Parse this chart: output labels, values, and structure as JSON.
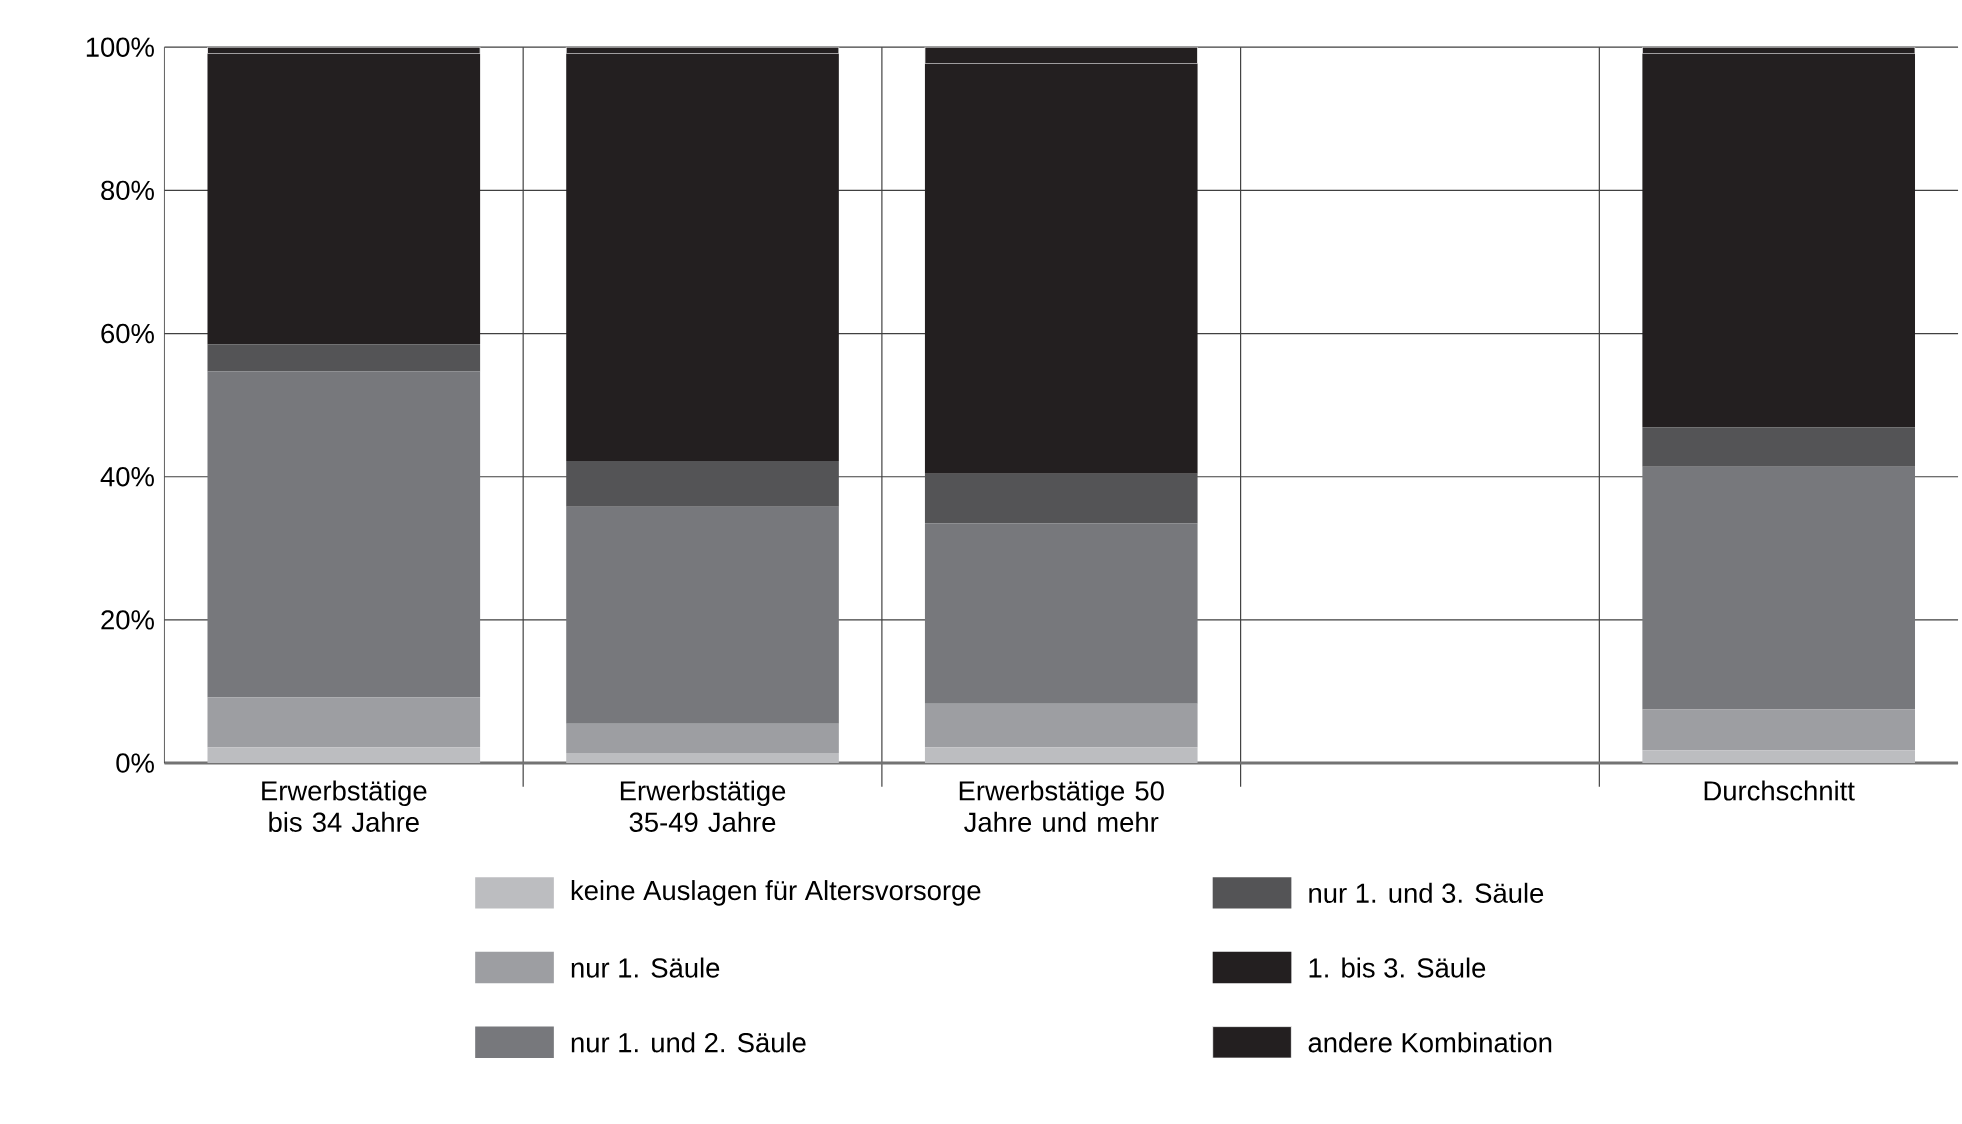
{
  "chart_data": {
    "type": "bar",
    "stacked": true,
    "categories": [
      "Erwerbstätige bis 34 Jahre",
      "Erwerbstätige 35-49 Jahre",
      "Erwerbstätige 50 Jahre und mehr",
      null,
      "Durchschnitt"
    ],
    "series": [
      {
        "name": "keine Auslagen für Altersvorsorge",
        "color": "#bcbdc0",
        "values": [
          2.2,
          1.4,
          2.2,
          null,
          1.8
        ]
      },
      {
        "name": "nur 1. Säule",
        "color": "#9d9ea2",
        "values": [
          7.0,
          4.1,
          6.1,
          null,
          5.7
        ]
      },
      {
        "name": "nur 1. und 2. Säule",
        "color": "#77787c",
        "values": [
          45.5,
          30.3,
          25.2,
          null,
          33.9
        ]
      },
      {
        "name": "nur 1. und 3. Säule",
        "color": "#545456",
        "values": [
          3.8,
          6.4,
          6.9,
          null,
          5.5
        ]
      },
      {
        "name": "1. bis 3. Säule",
        "color": "#231f20",
        "values": [
          40.6,
          56.9,
          57.3,
          null,
          52.2
        ]
      },
      {
        "name": "andere Kombination",
        "color": "#231f20",
        "values": [
          0.9,
          0.9,
          2.3,
          null,
          0.9
        ]
      }
    ],
    "ylim": [
      0,
      100
    ],
    "yticks": [
      {
        "value": 0,
        "label": "0%"
      },
      {
        "value": 20,
        "label": "20%"
      },
      {
        "value": 40,
        "label": "40%"
      },
      {
        "value": 60,
        "label": "60%"
      },
      {
        "value": 80,
        "label": "80%"
      },
      {
        "value": 100,
        "label": "100%"
      }
    ],
    "grid": true,
    "legend": "bottom"
  }
}
